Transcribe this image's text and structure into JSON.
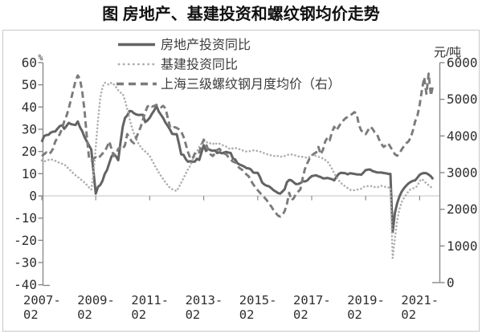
{
  "title": "图 房地产、基建投资和螺纹钢均价走势",
  "legend": {
    "items": [
      {
        "label": "房地产投资同比",
        "style": "solid"
      },
      {
        "label": "基建投资同比",
        "style": "dotted"
      },
      {
        "label": "上海三级螺纹钢月度均价（右）",
        "style": "dashed"
      }
    ]
  },
  "axes": {
    "left": {
      "unit": "%"
    },
    "right": {
      "unit": "元/吨"
    }
  },
  "colors": {
    "solid_line": "#636363",
    "dotted_line": "#aeaeae",
    "dashed_line": "#7b7b7b",
    "axis": "#8a8a8a",
    "gridline": "#cfcfcf",
    "tick_text": "#2e2e2e",
    "border": "#c9c9c9",
    "title_text": "#111111"
  },
  "chart_data": {
    "type": "line",
    "title": "图 房地产、基建投资和螺纹钢均价走势",
    "x_start": "2007-02",
    "x_freq": "monthly",
    "x_tick_labels": [
      "2007-02",
      "2009-02",
      "2011-02",
      "2013-02",
      "2015-02",
      "2017-02",
      "2019-02",
      "2021-02"
    ],
    "left_ticks": [
      60,
      50,
      40,
      30,
      20,
      10,
      0,
      -10,
      -20,
      -30,
      -40
    ],
    "right_ticks": [
      6000,
      5000,
      4000,
      3000,
      2000,
      1000,
      0
    ],
    "left_ylim": [
      -40,
      60
    ],
    "right_ylim": [
      0,
      6000
    ],
    "grid": "zero-line-only",
    "legend_position": "top-left-inside",
    "series": [
      {
        "name": "房地产投资同比",
        "axis": "left",
        "style": "solid",
        "color": "#636363",
        "values": [
          24.3,
          26.9,
          27.4,
          27.5,
          28.5,
          28.9,
          29.0,
          30.3,
          31.4,
          31.8,
          30.2,
          31.5,
          32.9,
          32.3,
          32.1,
          31.9,
          33.5,
          30.9,
          29.1,
          26.5,
          24.6,
          22.7,
          20.9,
          11.0,
          1.0,
          4.1,
          4.9,
          6.8,
          9.9,
          11.6,
          14.7,
          17.7,
          18.9,
          17.8,
          16.1,
          24.0,
          31.1,
          35.1,
          36.2,
          38.2,
          38.1,
          37.2,
          36.7,
          36.4,
          36.5,
          36.5,
          33.2,
          34.0,
          35.2,
          37.0,
          38.5,
          40.5,
          38.0,
          36.5,
          35.0,
          33.0,
          31.5,
          29.9,
          27.9,
          27.8,
          27.8,
          23.5,
          18.7,
          18.5,
          16.6,
          15.4,
          15.6,
          15.4,
          15.4,
          16.7,
          16.2,
          19.5,
          22.8,
          20.2,
          21.1,
          20.6,
          20.3,
          20.5,
          19.3,
          19.7,
          19.2,
          19.5,
          19.8,
          19.5,
          19.3,
          16.8,
          16.4,
          14.7,
          14.1,
          13.7,
          13.2,
          12.5,
          12.4,
          11.9,
          10.5,
          10.4,
          10.4,
          8.5,
          6.0,
          5.1,
          4.6,
          4.3,
          3.5,
          2.6,
          2.0,
          1.3,
          1.0,
          2.0,
          3.0,
          6.2,
          7.2,
          7.0,
          6.1,
          5.3,
          5.4,
          5.8,
          6.6,
          6.5,
          6.9,
          8.0,
          8.9,
          9.1,
          9.3,
          8.8,
          8.5,
          7.9,
          7.9,
          8.1,
          7.8,
          7.5,
          7.0,
          8.5,
          9.9,
          10.4,
          10.3,
          10.2,
          9.7,
          10.2,
          10.1,
          9.9,
          9.7,
          9.7,
          9.5,
          10.5,
          11.6,
          11.8,
          11.9,
          11.2,
          10.9,
          10.6,
          10.5,
          10.5,
          10.3,
          10.2,
          9.9,
          9.9,
          -16.3,
          -7.7,
          -3.3,
          -0.3,
          1.9,
          3.4,
          4.6,
          5.6,
          6.3,
          6.8,
          7.0,
          8.2,
          9.5,
          10.1,
          10.3,
          10.2,
          9.6,
          8.8,
          7.5
        ]
      },
      {
        "name": "基建投资同比",
        "axis": "left",
        "style": "dotted",
        "color": "#aeaeae",
        "values": [
          16.0,
          15.5,
          15.8,
          16.2,
          16.5,
          16.2,
          15.8,
          15.3,
          14.8,
          14.5,
          14.2,
          13.2,
          12.2,
          11.2,
          10.2,
          9.3,
          8.5,
          7.7,
          6.9,
          6.0,
          5.0,
          3.8,
          2.8,
          10.0,
          22.0,
          34.0,
          44.0,
          49.0,
          51.0,
          50.5,
          50.0,
          51.0,
          50.2,
          49.0,
          47.5,
          46.5,
          46.0,
          43.0,
          39.0,
          35.0,
          31.0,
          28.0,
          25.5,
          23.5,
          22.0,
          20.8,
          20.0,
          19.0,
          18.0,
          16.0,
          14.2,
          12.3,
          10.5,
          9.0,
          7.5,
          6.0,
          4.8,
          3.6,
          3.0,
          2.6,
          2.2,
          4.0,
          6.0,
          8.0,
          10.0,
          12.0,
          13.5,
          16.0,
          18.0,
          20.0,
          22.0,
          23.5,
          24.5,
          24.0,
          24.2,
          23.6,
          23.2,
          24.0,
          23.2,
          23.5,
          23.0,
          22.6,
          22.2,
          21.5,
          21.0,
          21.5,
          21.6,
          21.2,
          21.0,
          20.6,
          20.2,
          20.0,
          20.0,
          20.3,
          20.5,
          20.4,
          20.2,
          20.0,
          19.6,
          19.2,
          18.8,
          18.6,
          18.2,
          18.0,
          17.8,
          18.0,
          17.6,
          17.8,
          18.0,
          18.4,
          18.6,
          18.6,
          18.4,
          18.2,
          17.8,
          17.6,
          17.6,
          17.4,
          17.2,
          17.5,
          18.5,
          18.3,
          18.0,
          17.6,
          17.3,
          16.8,
          16.2,
          15.5,
          14.0,
          12.2,
          10.2,
          8.6,
          7.0,
          5.8,
          5.0,
          4.2,
          3.5,
          2.8,
          2.5,
          2.6,
          2.8,
          3.0,
          3.2,
          4.0,
          4.3,
          4.4,
          4.5,
          4.2,
          4.0,
          3.8,
          4.2,
          4.5,
          4.2,
          4.0,
          3.8,
          3.8,
          -28.0,
          -19.0,
          -11.0,
          -6.0,
          -2.7,
          -1.0,
          0.5,
          2.0,
          3.0,
          3.4,
          3.6,
          4.6,
          6.8,
          7.6,
          6.6,
          5.6,
          4.8,
          4.0,
          3.2
        ]
      },
      {
        "name": "上海三级螺纹钢月度均价（右）",
        "axis": "right",
        "style": "dashed",
        "color": "#7b7b7b",
        "values": [
          3450,
          3500,
          3550,
          3500,
          3550,
          3650,
          3850,
          3950,
          4050,
          4200,
          4400,
          4550,
          4750,
          5000,
          5250,
          5500,
          5650,
          5550,
          5200,
          4700,
          4000,
          3400,
          3330,
          3380,
          3420,
          3380,
          3450,
          3520,
          3580,
          3700,
          3850,
          3650,
          3450,
          3500,
          3650,
          3700,
          3650,
          3750,
          4050,
          3950,
          3850,
          3800,
          3950,
          4100,
          4250,
          4450,
          4650,
          4800,
          4850,
          4800,
          4820,
          4850,
          4800,
          4780,
          4820,
          4750,
          4500,
          4250,
          4200,
          4240,
          4220,
          4180,
          4120,
          3980,
          3780,
          3560,
          3400,
          3370,
          3520,
          3580,
          3550,
          3750,
          3900,
          3780,
          3620,
          3500,
          3450,
          3520,
          3620,
          3650,
          3580,
          3520,
          3500,
          3420,
          3350,
          3300,
          3280,
          3180,
          3120,
          3080,
          3020,
          2950,
          2900,
          2780,
          2680,
          2600,
          2520,
          2450,
          2380,
          2320,
          2250,
          2150,
          2080,
          1980,
          1900,
          1830,
          1800,
          1850,
          1950,
          2150,
          2450,
          2250,
          2300,
          2420,
          2480,
          2550,
          2850,
          3100,
          3250,
          3380,
          3450,
          3520,
          3550,
          3700,
          3500,
          3620,
          3850,
          3950,
          3880,
          4100,
          4250,
          4150,
          4250,
          4350,
          4420,
          4480,
          4520,
          4560,
          4600,
          4650,
          4600,
          4300,
          4150,
          4100,
          4050,
          4150,
          4250,
          4200,
          4100,
          4050,
          3900,
          3780,
          3700,
          3750,
          3800,
          3700,
          3600,
          3500,
          3460,
          3530,
          3630,
          3720,
          3800,
          3850,
          3950,
          4150,
          4400,
          4550,
          4850,
          5250,
          5600,
          5150,
          5700,
          5100,
          5400
        ]
      }
    ]
  }
}
